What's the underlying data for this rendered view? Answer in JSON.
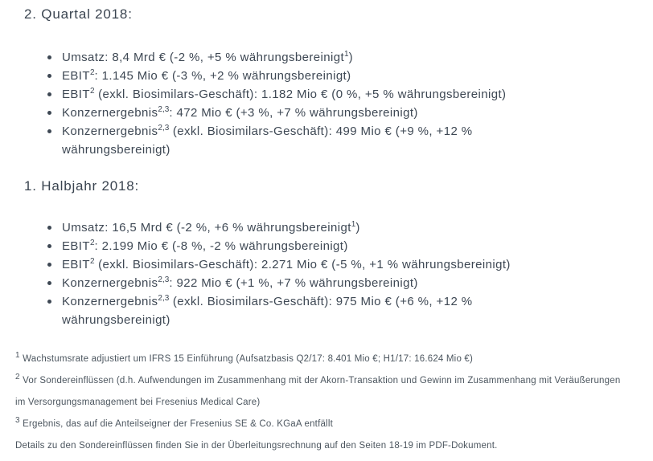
{
  "colors": {
    "background": "#ffffff",
    "text": "#3e4854",
    "footnote_text": "#4c565f"
  },
  "sections": [
    {
      "heading": "2. Quartal 2018:",
      "bullets": [
        [
          {
            "t": "Umsatz: 8,4 Mrd € (-2 %, +5 % währungsbereinigt"
          },
          {
            "sup": "1"
          },
          {
            "t": ")"
          }
        ],
        [
          {
            "t": "EBIT"
          },
          {
            "sup": "2"
          },
          {
            "t": ": 1.145 Mio € (-3 %, +2 % währungsbereinigt)"
          }
        ],
        [
          {
            "t": "EBIT"
          },
          {
            "sup": "2"
          },
          {
            "t": " (exkl. Biosimilars-Geschäft): 1.182 Mio € (0 %, +5 % währungsbereinigt)"
          }
        ],
        [
          {
            "t": "Konzernergebnis"
          },
          {
            "sup": "2,3"
          },
          {
            "t": ": 472 Mio € (+3 %, +7 % währungsbereinigt)"
          }
        ],
        [
          {
            "t": "Konzernergebnis"
          },
          {
            "sup": "2,3"
          },
          {
            "t": " (exkl. Biosimilars-Geschäft): 499 Mio € (+9 %, +12 %"
          },
          {
            "br": true
          },
          {
            "t": "währungsbereinigt)"
          }
        ]
      ]
    },
    {
      "heading": "1. Halbjahr 2018:",
      "bullets": [
        [
          {
            "t": "Umsatz: 16,5 Mrd € (-2 %, +6 % währungsbereinigt"
          },
          {
            "sup": "1"
          },
          {
            "t": ")"
          }
        ],
        [
          {
            "t": "EBIT"
          },
          {
            "sup": "2"
          },
          {
            "t": ": 2.199 Mio € (-8 %, -2 % währungsbereinigt)"
          }
        ],
        [
          {
            "t": "EBIT"
          },
          {
            "sup": "2"
          },
          {
            "t": " (exkl. Biosimilars-Geschäft): 2.271 Mio € (-5 %, +1 % währungsbereinigt)"
          }
        ],
        [
          {
            "t": "Konzernergebnis"
          },
          {
            "sup": "2,3"
          },
          {
            "t": ": 922 Mio € (+1 %, +7 % währungsbereinigt)"
          }
        ],
        [
          {
            "t": "Konzernergebnis"
          },
          {
            "sup": "2,3"
          },
          {
            "t": " (exkl. Biosimilars-Geschäft): 975 Mio € (+6 %, +12 %"
          },
          {
            "br": true
          },
          {
            "t": "währungsbereinigt)"
          }
        ]
      ]
    }
  ],
  "footnotes": [
    [
      {
        "sup": "1"
      },
      {
        "t": " Wachstumsrate adjustiert um IFRS 15 Einführung (Aufsatzbasis Q2/17: 8.401 Mio €; H1/17: 16.624 Mio €)"
      }
    ],
    [
      {
        "sup": "2"
      },
      {
        "t": " Vor Sondereinflüssen (d.h. Aufwendungen im Zusammenhang mit der Akorn-Transaktion und Gewinn im Zusammenhang mit Veräußerungen"
      },
      {
        "br": true
      },
      {
        "t": "im Versorgungsmanagement bei Fresenius Medical Care)"
      }
    ],
    [
      {
        "sup": "3"
      },
      {
        "t": " Ergebnis, das auf die Anteilseigner der Fresenius SE & Co. KGaA entfällt"
      }
    ]
  ],
  "details_note": "Details zu den Sondereinflüssen finden Sie in der Überleitungsrechnung auf den Seiten 18-19 im PDF-Dokument."
}
